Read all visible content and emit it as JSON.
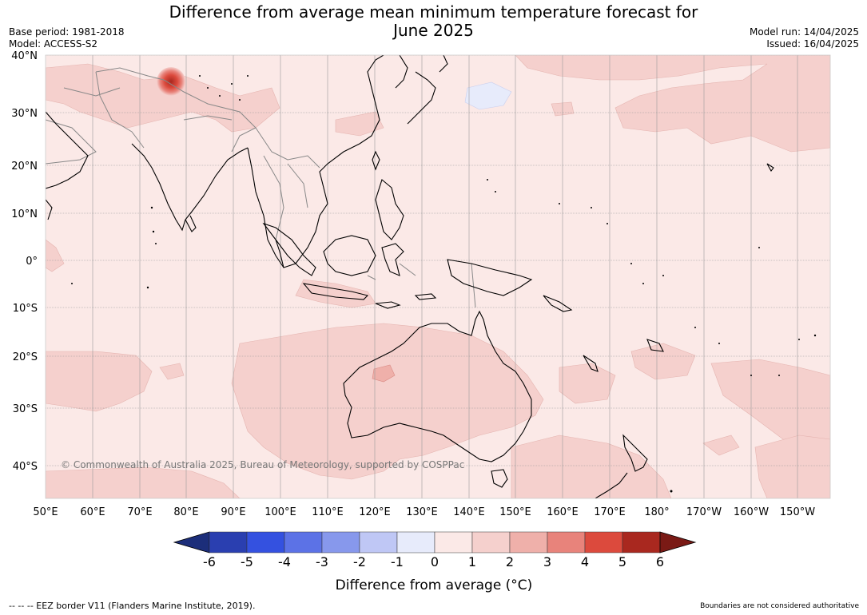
{
  "title_line1": "Difference from average mean minimum temperature forecast for",
  "title_line2": "June 2025",
  "base_period": "Base period: 1981-2018",
  "model": "Model: ACCESS-S2",
  "model_run": "Model run: 14/04/2025",
  "issued": "Issued: 16/04/2025",
  "copyright": "© Commonwealth of Australia 2025, Bureau of Meteorology, supported by COSPPac",
  "lat_labels": [
    "40°N",
    "30°N",
    "20°N",
    "10°N",
    "0°",
    "10°S",
    "20°S",
    "30°S",
    "40°S"
  ],
  "lon_labels": [
    "50°E",
    "60°E",
    "70°E",
    "80°E",
    "90°E",
    "100°E",
    "110°E",
    "120°E",
    "130°E",
    "140°E",
    "150°E",
    "160°E",
    "170°E",
    "180°",
    "170°W",
    "160°W",
    "150°W"
  ],
  "legend": {
    "ticks": [
      "-6",
      "-5",
      "-4",
      "-3",
      "-2",
      "-1",
      "0",
      "1",
      "2",
      "3",
      "4",
      "5",
      "6"
    ],
    "label": "Difference from average (°C)",
    "colors": [
      "#1c2e7a",
      "#2a3fb0",
      "#3451e0",
      "#5c72e6",
      "#8798ec",
      "#bfc7f5",
      "#e7ebfb",
      "#fbe9e7",
      "#f5d0cd",
      "#efb0aa",
      "#e8837b",
      "#dc4a3d",
      "#a9281f",
      "#7a1a15"
    ]
  },
  "eez_note": "--  --  -- EEZ border V11 (Flanders Marine Institute, 2019).",
  "boundaries_note": "Boundaries are not considered authoritative"
}
